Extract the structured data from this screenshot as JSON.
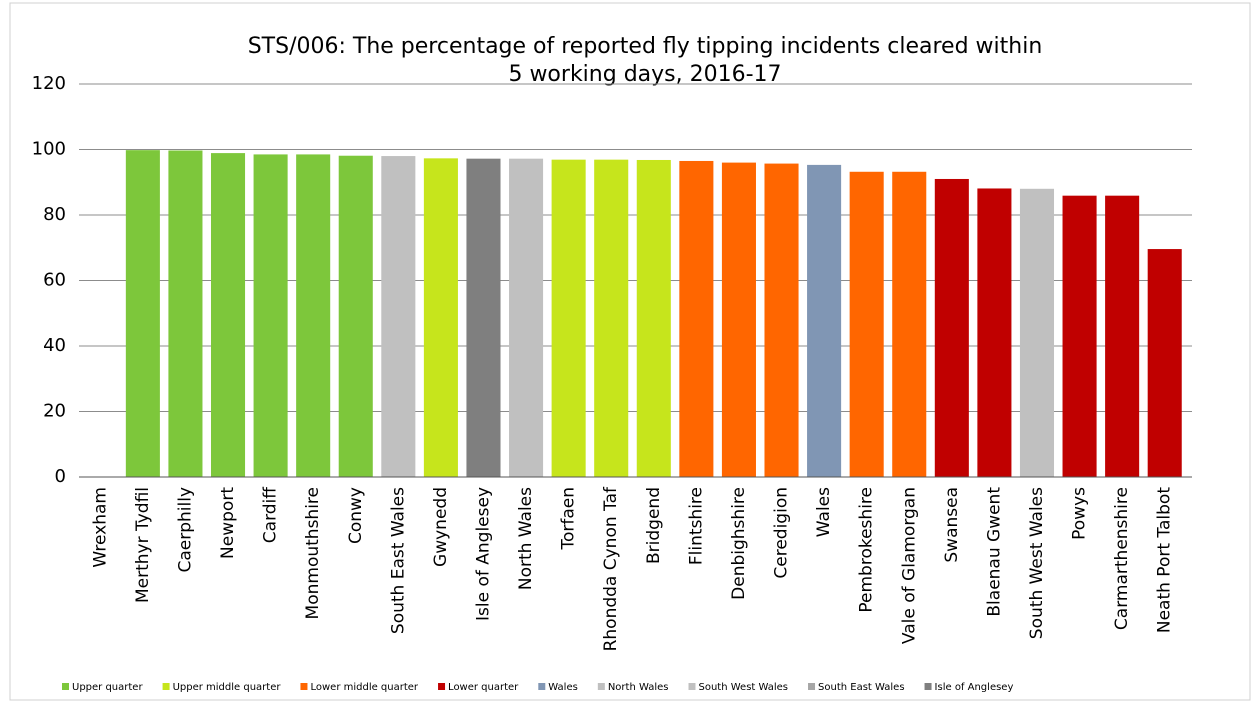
{
  "chart_data": {
    "type": "bar",
    "title": [
      "STS/006: The percentage of reported fly tipping incidents cleared within",
      "5 working days, 2016-17"
    ],
    "categories": [
      "Wrexham",
      "Merthyr Tydfil",
      "Caerphilly",
      "Newport",
      "Cardiff",
      "Monmouthshire",
      "Conwy",
      "South East Wales",
      "Gwynedd",
      "Isle of Anglesey",
      "North Wales",
      "Torfaen",
      "Rhondda Cynon Taf",
      "Bridgend",
      "Flintshire",
      "Denbighshire",
      "Ceredigion",
      "Wales",
      "Pembrokeshire",
      "Vale of Glamorgan",
      "Swansea",
      "Blaenau Gwent",
      "South West Wales",
      "Powys",
      "Carmarthenshire",
      "Neath Port Talbot"
    ],
    "values": [
      null,
      99.8,
      99.7,
      98.9,
      98.5,
      98.5,
      98.1,
      98.0,
      97.3,
      97.2,
      97.2,
      96.9,
      96.9,
      96.8,
      96.5,
      96.0,
      95.7,
      95.3,
      93.2,
      93.2,
      91.0,
      88.1,
      88.0,
      85.9,
      85.9,
      69.6
    ],
    "colors": [
      null,
      "#7dc73b",
      "#7dc73b",
      "#7dc73b",
      "#7dc73b",
      "#7dc73b",
      "#7dc73b",
      "#c0c0c0",
      "#c6e51c",
      "#7f7f7f",
      "#c0c0c0",
      "#c6e51c",
      "#c6e51c",
      "#c6e51c",
      "#ff6600",
      "#ff6600",
      "#ff6600",
      "#8096b4",
      "#ff6600",
      "#ff6600",
      "#c00000",
      "#c00000",
      "#c0c0c0",
      "#c00000",
      "#c00000",
      "#c00000"
    ],
    "legend": [
      {
        "name": "Upper quarter",
        "color": "#7dc73b"
      },
      {
        "name": "Upper middle quarter",
        "color": "#c6e51c"
      },
      {
        "name": "Lower middle quarter",
        "color": "#ff6600"
      },
      {
        "name": "Lower quarter",
        "color": "#c00000"
      },
      {
        "name": "Wales",
        "color": "#8096b4"
      },
      {
        "name": "North Wales",
        "color": "#c0c0c0"
      },
      {
        "name": "South West Wales",
        "color": "#c0c0c0"
      },
      {
        "name": "South East Wales",
        "color": "#a6a6a6"
      },
      {
        "name": "Isle of Anglesey",
        "color": "#7f7f7f"
      }
    ],
    "ylim": [
      0,
      120
    ],
    "yticks": [
      0,
      20,
      40,
      60,
      80,
      100,
      120
    ],
    "grid": true
  }
}
